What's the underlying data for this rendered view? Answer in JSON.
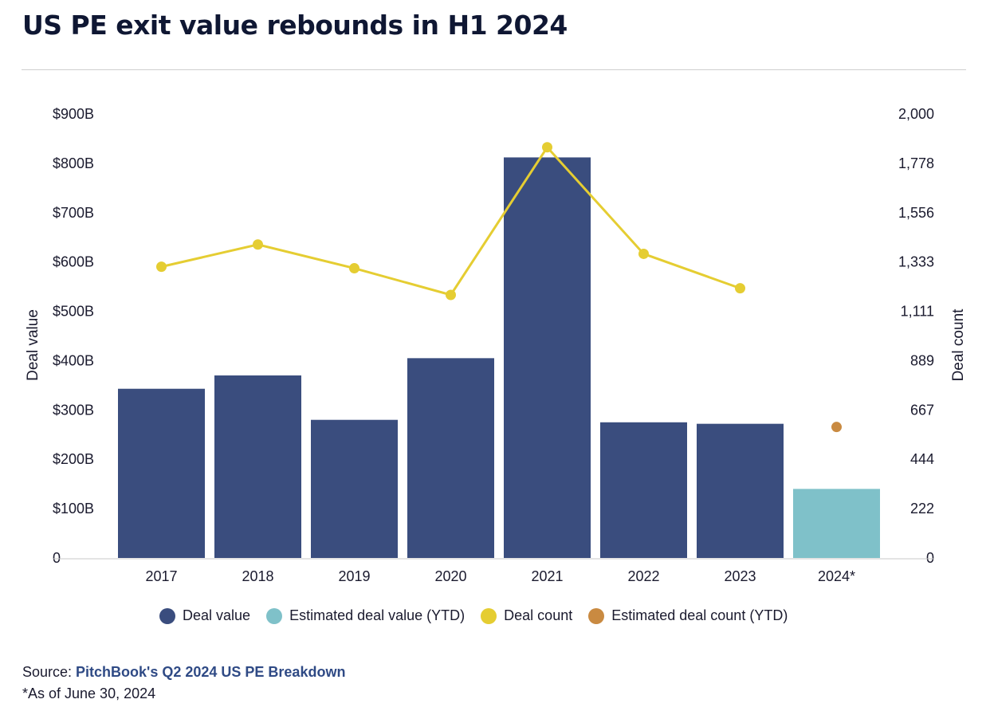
{
  "header": {
    "title": "US PE exit value rebounds in H1 2024"
  },
  "chart_data": {
    "type": "bar",
    "categories": [
      "2017",
      "2018",
      "2019",
      "2020",
      "2021",
      "2022",
      "2023",
      "2024*"
    ],
    "series": [
      {
        "name": "Deal value",
        "axis": "left",
        "kind": "bar",
        "values": [
          343,
          370,
          280,
          405,
          812,
          275,
          272,
          null
        ],
        "color": "#3a4d7e"
      },
      {
        "name": "Estimated deal value (YTD)",
        "axis": "left",
        "kind": "bar",
        "values": [
          null,
          null,
          null,
          null,
          null,
          null,
          null,
          140
        ],
        "color": "#7fc1c9"
      },
      {
        "name": "Deal count",
        "axis": "right",
        "kind": "line",
        "values": [
          1312,
          1412,
          1305,
          1185,
          1850,
          1370,
          1215,
          null
        ],
        "color": "#e5cd32"
      },
      {
        "name": "Estimated deal count (YTD)",
        "axis": "right",
        "kind": "point",
        "values": [
          null,
          null,
          null,
          null,
          null,
          null,
          null,
          590
        ],
        "color": "#c98a41"
      }
    ],
    "ylabel": "Deal value",
    "ylabel_right": "Deal count",
    "ylim": [
      0,
      900
    ],
    "ylim_right": [
      0,
      2000
    ],
    "yticks": [
      "0",
      "$100B",
      "$200B",
      "$300B",
      "$400B",
      "$500B",
      "$600B",
      "$700B",
      "$800B",
      "$900B"
    ],
    "yticks_right": [
      "0",
      "222",
      "444",
      "667",
      "889",
      "1,111",
      "1,333",
      "1,556",
      "1,778",
      "2,000"
    ],
    "grid": false,
    "legend_position": "bottom-center"
  },
  "legend": [
    {
      "label": "Deal value",
      "color": "#3a4d7e"
    },
    {
      "label": "Estimated deal value (YTD)",
      "color": "#7fc1c9"
    },
    {
      "label": "Deal count",
      "color": "#e5cd32"
    },
    {
      "label": "Estimated deal count (YTD)",
      "color": "#c98a41"
    }
  ],
  "footer": {
    "source_prefix": "Source: ",
    "source_link": "PitchBook's Q2 2024 US PE Breakdown",
    "footnote": "*As of June 30, 2024"
  }
}
